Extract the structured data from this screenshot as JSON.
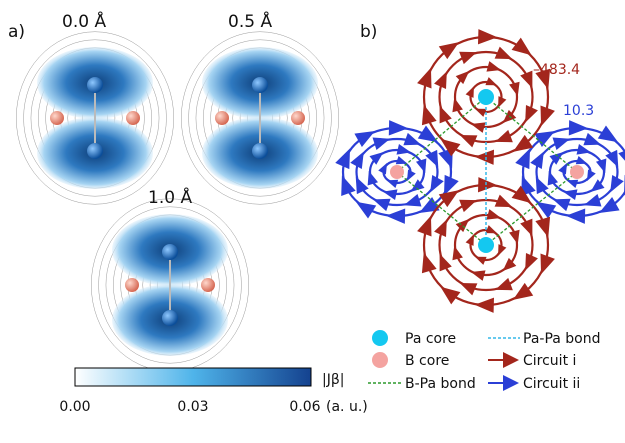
{
  "panel_a": {
    "label": "a)",
    "displacements": [
      "0.0 Å",
      "0.5 Å",
      "1.0 Å"
    ],
    "colorbar": {
      "ticks": [
        "0.00",
        "0.03",
        "0.06"
      ],
      "label": "|Jβ|",
      "unit": "(a. u.)"
    }
  },
  "panel_b": {
    "label": "b)",
    "values": [
      "–483.4",
      "10.3"
    ],
    "legend": [
      "Pa core",
      "B core",
      "B-Pa bond",
      "Pa-Pa bond",
      "Circuit i",
      "Circuit ii"
    ]
  }
}
